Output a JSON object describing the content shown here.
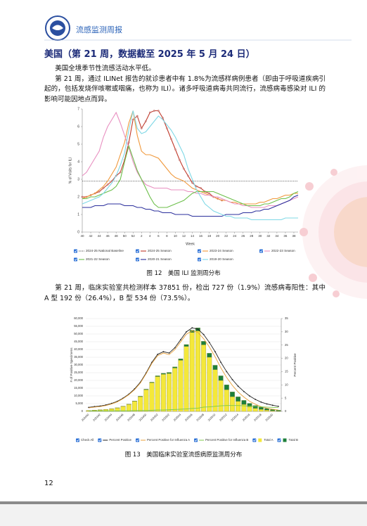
{
  "header": {
    "title": "流感监测周报"
  },
  "heading": "美国（第 21 周，数据截至 2025 年 5 月 24 日）",
  "paragraphs": [
    "美国全境季节性流感活动水平低。",
    "第 21 周，通过 ILINet 报告的就诊患者中有 1.8%为流感样病例患者（即由于呼吸道疾病引起的，包括发烧伴咳嗽或咽痛，也称为 ILI）。诸多呼吸道病毒共同流行，流感病毒感染对 ILI 的影响可能因地点而异。",
    "第 21 周，临床实验室共检测样本 37851 份，检出 727 份（1.9%）流感病毒阳性：其中 A 型 192 份（26.4%），B 型 534 份（73.5%）。"
  ],
  "captions": [
    "图 12　美国 ILI 监测周分布",
    "图 13　美国临床实验室流感病原监测周分布"
  ],
  "page_number": "12",
  "chart_data": [
    {
      "type": "line",
      "ylabel": "% of Visits for ILI",
      "xlabel": "Week",
      "categories": [
        "40",
        null,
        "42",
        null,
        "44",
        null,
        "46",
        null,
        "48",
        null,
        "50",
        null,
        "52",
        null,
        "2",
        null,
        "4",
        null,
        "6",
        null,
        "8",
        null,
        "10",
        null,
        "12",
        null,
        "14",
        null,
        "16",
        null,
        "18",
        null,
        "20",
        null,
        "22",
        null,
        "24",
        null,
        "26",
        null,
        "28",
        null,
        "30",
        null,
        "32",
        null,
        "34",
        null,
        "36",
        null,
        "38",
        null
      ],
      "ylim": [
        0,
        7
      ],
      "yticks": [
        0,
        1,
        2,
        3,
        4,
        5,
        6,
        7
      ],
      "series": [
        {
          "name": "2024-25 National Baseline",
          "color": "#444444",
          "dash": true,
          "values": [
            2.9,
            2.9,
            2.9,
            2.9,
            2.9,
            2.9,
            2.9,
            2.9,
            2.9,
            2.9,
            2.9,
            2.9,
            2.9,
            2.9,
            2.9,
            2.9,
            2.9,
            2.9,
            2.9,
            2.9,
            2.9,
            2.9,
            2.9,
            2.9,
            2.9,
            2.9,
            2.9,
            2.9,
            2.9,
            2.9,
            2.9,
            2.9,
            2.9,
            2.9,
            2.9,
            2.9,
            2.9,
            2.9,
            2.9,
            2.9,
            2.9,
            2.9,
            2.9,
            2.9,
            2.9,
            2.9,
            2.9,
            2.9,
            2.9,
            2.9,
            2.9,
            2.9
          ]
        },
        {
          "name": "2024-25 Season",
          "color": "#c0392b",
          "markers": true,
          "values": [
            2.0,
            2.0,
            2.1,
            2.2,
            2.3,
            2.5,
            2.7,
            2.9,
            3.2,
            3.4,
            4.1,
            5.1,
            6.4,
            6.6,
            5.9,
            6.3,
            6.8,
            6.9,
            6.9,
            6.5,
            5.9,
            5.3,
            4.7,
            4.1,
            3.6,
            3.2,
            2.8,
            2.6,
            2.5,
            2.3,
            2.2,
            2.0,
            1.9,
            1.8,
            null,
            null,
            null,
            null,
            null,
            null,
            null,
            null,
            null,
            null,
            null,
            null,
            null,
            null,
            null,
            null,
            null,
            null
          ]
        },
        {
          "name": "2023-24 Season",
          "color": "#f0983a",
          "values": [
            1.9,
            2.0,
            2.1,
            2.2,
            2.4,
            2.6,
            2.9,
            3.3,
            3.7,
            4.4,
            5.1,
            6.2,
            6.9,
            5.5,
            4.6,
            4.4,
            4.4,
            4.3,
            4.2,
            3.9,
            3.6,
            3.3,
            3.1,
            3.0,
            2.9,
            2.7,
            2.5,
            2.4,
            2.3,
            2.2,
            2.1,
            2.0,
            1.9,
            1.8,
            1.8,
            1.7,
            1.7,
            1.6,
            1.6,
            1.6,
            1.6,
            1.6,
            1.7,
            1.7,
            1.8,
            1.9,
            1.9,
            2.0,
            2.1,
            2.1,
            2.2,
            2.2
          ]
        },
        {
          "name": "2022-23 Season",
          "color": "#e88fc0",
          "values": [
            3.2,
            3.4,
            3.8,
            4.2,
            4.6,
            5.4,
            6.0,
            6.4,
            6.8,
            6.2,
            5.5,
            4.8,
            4.0,
            3.4,
            3.0,
            2.7,
            2.6,
            2.5,
            2.5,
            2.5,
            2.5,
            2.4,
            2.4,
            2.4,
            2.4,
            2.3,
            2.3,
            2.2,
            2.2,
            2.1,
            2.1,
            2.0,
            2.0,
            1.9,
            1.8,
            1.7,
            1.6,
            1.6,
            1.5,
            1.5,
            1.4,
            1.4,
            1.4,
            1.4,
            1.5,
            1.5,
            1.5,
            1.6,
            1.7,
            1.8,
            1.9,
            2.0
          ]
        },
        {
          "name": "2021-22 Season",
          "color": "#6cbf4a",
          "values": [
            1.9,
            1.9,
            2.0,
            2.0,
            2.1,
            2.2,
            2.3,
            2.4,
            2.6,
            3.0,
            4.0,
            4.9,
            4.2,
            3.5,
            3.0,
            2.5,
            2.0,
            1.6,
            1.4,
            1.4,
            1.4,
            1.5,
            1.6,
            1.7,
            1.8,
            2.0,
            2.2,
            2.3,
            2.3,
            2.3,
            2.3,
            2.3,
            2.2,
            2.1,
            2.0,
            1.9,
            1.8,
            1.7,
            1.6,
            1.5,
            1.5,
            1.5,
            1.5,
            1.6,
            1.6,
            1.7,
            1.8,
            1.9,
            1.9,
            2.0,
            2.2,
            2.3
          ]
        },
        {
          "name": "2020-21 Season",
          "color": "#2b2f9c",
          "values": [
            1.4,
            1.4,
            1.4,
            1.5,
            1.5,
            1.5,
            1.6,
            1.6,
            1.6,
            1.6,
            1.5,
            1.5,
            1.5,
            1.4,
            1.4,
            1.3,
            1.3,
            1.2,
            1.2,
            1.1,
            1.1,
            1.1,
            1.0,
            1.0,
            1.0,
            1.0,
            0.9,
            0.9,
            0.9,
            0.9,
            0.9,
            0.9,
            0.9,
            0.9,
            1.0,
            1.0,
            1.0,
            1.0,
            1.1,
            1.1,
            1.1,
            1.2,
            1.2,
            1.3,
            1.3,
            1.4,
            1.5,
            1.6,
            1.7,
            1.8,
            2.0,
            2.1
          ]
        },
        {
          "name": "2019-20 Season",
          "color": "#7fd8e6",
          "values": [
            1.6,
            1.7,
            1.8,
            1.9,
            2.0,
            2.2,
            2.5,
            2.8,
            3.2,
            3.8,
            4.5,
            5.8,
            6.9,
            5.9,
            5.6,
            5.7,
            6.0,
            6.3,
            6.6,
            6.4,
            6.1,
            5.8,
            5.4,
            4.9,
            4.4,
            3.6,
            3.0,
            2.4,
            2.0,
            1.6,
            1.4,
            1.2,
            1.1,
            1.0,
            0.9,
            0.9,
            0.8,
            0.8,
            0.8,
            0.8,
            0.7,
            0.7,
            0.7,
            0.7,
            0.7,
            0.7,
            0.7,
            0.7,
            0.8,
            0.8,
            0.8,
            0.8
          ]
        }
      ]
    },
    {
      "type": "bar",
      "stacked": true,
      "grid": true,
      "ylabel": "# of Positive Specimens",
      "y2label": "Percent Positive",
      "check_all": "Check All",
      "categories": [
        "202440",
        null,
        "202442",
        null,
        "202444",
        null,
        "202446",
        null,
        "202448",
        null,
        "202450",
        null,
        "202452",
        null,
        "202502",
        null,
        "202504",
        null,
        "202506",
        null,
        "202508",
        null,
        "202510",
        null,
        "202512",
        null,
        "202514",
        null,
        "202516",
        null,
        "202518",
        null,
        "202520",
        null
      ],
      "ylim": [
        0,
        60000
      ],
      "yticks": [
        0,
        {
          "value": 5000,
          "label": "5,000"
        },
        {
          "value": 10000,
          "label": "10,000"
        },
        {
          "value": 15000,
          "label": "15,000"
        },
        {
          "value": 20000,
          "label": "20,000"
        },
        {
          "value": 25000,
          "label": "25,000"
        },
        {
          "value": 30000,
          "label": "30,000"
        },
        {
          "value": 35000,
          "label": "35,000"
        },
        {
          "value": 40000,
          "label": "40,000"
        },
        {
          "value": 45000,
          "label": "45,000"
        },
        {
          "value": 50000,
          "label": "50,000"
        },
        {
          "value": 55000,
          "label": "55,000"
        },
        {
          "value": 60000,
          "label": "60,000"
        }
      ],
      "y2lim": [
        0,
        35
      ],
      "y2ticks": [
        0,
        5,
        10,
        15,
        20,
        25,
        30,
        35
      ],
      "series": [
        {
          "name": "Percent Positive",
          "kind": "line",
          "axis": "y2",
          "color": "#222222",
          "markers": true,
          "values": [
            1.5,
            1.8,
            2.0,
            2.4,
            3.0,
            3.8,
            5.0,
            6.5,
            8.5,
            11,
            14.5,
            18.5,
            21.5,
            22.5,
            22.0,
            24,
            27,
            30,
            31.5,
            31,
            29,
            26,
            22.5,
            18.5,
            15,
            12,
            9.5,
            7.5,
            5.8,
            4.5,
            3.5,
            2.8,
            2.3,
            1.9
          ]
        },
        {
          "name": "Percent Positive for Influenza A",
          "kind": "line",
          "axis": "y2",
          "color": "#e9a23b",
          "values": [
            1.3,
            1.6,
            1.8,
            2.2,
            2.8,
            3.6,
            4.8,
            6.3,
            8.2,
            10.7,
            14.2,
            18.1,
            21.0,
            22,
            21.4,
            23.3,
            26.2,
            29.1,
            30.4,
            29.8,
            27.4,
            24.3,
            20.6,
            16.4,
            12.8,
            9.8,
            7.3,
            5.4,
            3.8,
            2.7,
            1.8,
            1.2,
            0.8,
            0.5
          ]
        },
        {
          "name": "Percent Positive for Influenza B",
          "kind": "line",
          "axis": "y2",
          "color": "#7cc84a",
          "values": [
            0.2,
            0.2,
            0.2,
            0.2,
            0.2,
            0.2,
            0.2,
            0.2,
            0.3,
            0.3,
            0.3,
            0.4,
            0.5,
            0.5,
            0.6,
            0.7,
            0.8,
            0.9,
            1.1,
            1.2,
            1.6,
            1.7,
            1.9,
            2.1,
            2.2,
            2.2,
            2.2,
            2.1,
            2.0,
            1.8,
            1.7,
            1.6,
            1.5,
            1.4
          ]
        },
        {
          "name": "Total A",
          "kind": "bar",
          "color": "#f4e83a",
          "values": [
            500,
            700,
            900,
            1200,
            1600,
            2200,
            3200,
            4500,
            6500,
            9500,
            14000,
            18500,
            22500,
            24000,
            24500,
            28000,
            33000,
            42000,
            51000,
            52000,
            43000,
            35000,
            27000,
            20000,
            14000,
            9500,
            6500,
            4500,
            3000,
            2000,
            1300,
            800,
            400,
            192
          ]
        },
        {
          "name": "Total B",
          "kind": "bar",
          "color": "#1d7f3a",
          "values": [
            50,
            60,
            80,
            100,
            120,
            150,
            180,
            200,
            250,
            300,
            350,
            400,
            500,
            600,
            700,
            800,
            1000,
            1200,
            1500,
            2000,
            2300,
            2600,
            2800,
            3000,
            3200,
            3100,
            2900,
            2600,
            2200,
            1800,
            1400,
            1100,
            800,
            534
          ]
        }
      ]
    }
  ]
}
